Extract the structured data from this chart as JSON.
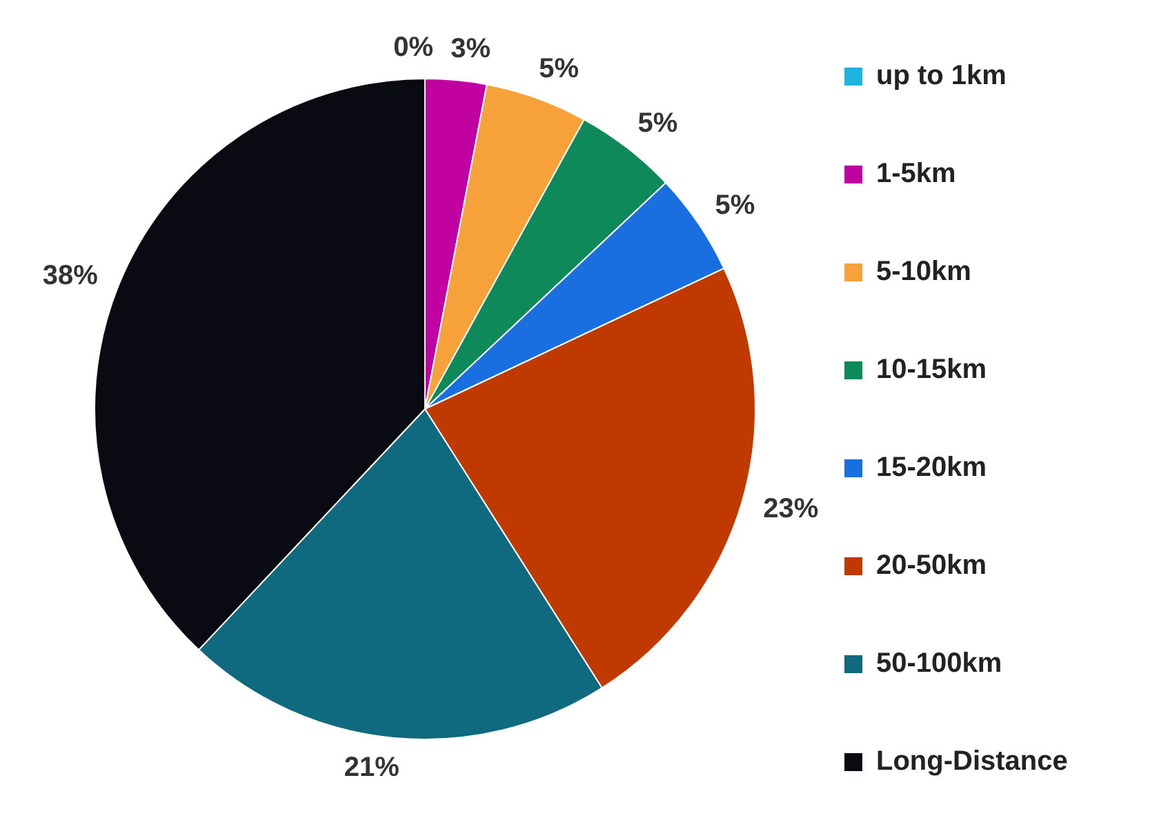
{
  "chart_data": {
    "type": "pie",
    "categories": [
      "up to 1km",
      "1-5km",
      "5-10km",
      "10-15km",
      "15-20km",
      "20-50km",
      "50-100km",
      "Long-Distance"
    ],
    "values": [
      0,
      3,
      5,
      5,
      5,
      23,
      21,
      38
    ],
    "colors": [
      "#1fb4e0",
      "#c000a0",
      "#f7a13a",
      "#0e8a5a",
      "#1a6fe0",
      "#c03a00",
      "#0f6a7f",
      "#0a0a12"
    ],
    "value_labels": [
      "0%",
      "3%",
      "5%",
      "5%",
      "5%",
      "23%",
      "21%",
      "38%"
    ],
    "legend": "right"
  }
}
